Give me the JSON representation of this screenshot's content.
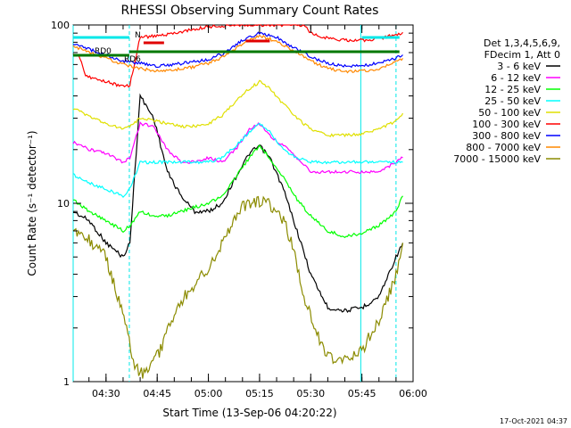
{
  "chart_data": {
    "type": "line",
    "title": "RHESSI Observing Summary Count Rates",
    "xlabel": "Start Time (13-Sep-06 04:20:22)",
    "ylabel": "Count Rate (s⁻¹ detector⁻¹)",
    "y_scale": "log",
    "ylim": [
      1,
      100
    ],
    "xlim": [
      "04:20:22",
      "06:00:00"
    ],
    "x_ticks": [
      "04:30",
      "04:45",
      "05:00",
      "05:15",
      "05:30",
      "05:45",
      "06:00"
    ],
    "y_ticks": [
      {
        "value": 1,
        "label": "1"
      },
      {
        "value": 10,
        "label": "10"
      },
      {
        "value": 100,
        "label": "100"
      }
    ],
    "timestamp": "17-Oct-2021 04:37",
    "legend": {
      "position": "right",
      "header": [
        "Det 1,3,4,5,6,9,",
        "FDecim 1, Att 0"
      ]
    },
    "flags": [
      {
        "label": "RD0",
        "color": "#00a000"
      },
      {
        "label": "RD6",
        "color": "#00a000"
      },
      {
        "label": "N",
        "color": "#00e8e8"
      }
    ],
    "vertical_markers": [
      "04:20:22",
      "04:36:50",
      "05:44:40",
      "05:55:00"
    ],
    "series": [
      {
        "name": "3 - 6 keV",
        "color": "#000000",
        "points": [
          [
            "04:20:22",
            9
          ],
          [
            "04:25",
            8
          ],
          [
            "04:30",
            6
          ],
          [
            "04:35",
            5
          ],
          [
            "04:37",
            6
          ],
          [
            "04:40",
            40
          ],
          [
            "04:44",
            30
          ],
          [
            "04:48",
            15
          ],
          [
            "04:52",
            11
          ],
          [
            "04:56",
            9
          ],
          [
            "05:00",
            9
          ],
          [
            "05:04",
            10
          ],
          [
            "05:08",
            14
          ],
          [
            "05:12",
            19
          ],
          [
            "05:15",
            21
          ],
          [
            "05:18",
            18
          ],
          [
            "05:22",
            12
          ],
          [
            "05:26",
            7
          ],
          [
            "05:30",
            4
          ],
          [
            "05:35",
            2.6
          ],
          [
            "05:40",
            2.5
          ],
          [
            "05:45",
            2.6
          ],
          [
            "05:50",
            3
          ],
          [
            "05:55",
            5
          ],
          [
            "05:57",
            6
          ]
        ]
      },
      {
        "name": "6 - 12 keV",
        "color": "#ff00ff",
        "points": [
          [
            "04:20:22",
            22
          ],
          [
            "04:25",
            20
          ],
          [
            "04:30",
            19
          ],
          [
            "04:35",
            17
          ],
          [
            "04:37",
            18
          ],
          [
            "04:40",
            28
          ],
          [
            "04:44",
            27
          ],
          [
            "04:48",
            20
          ],
          [
            "04:52",
            17
          ],
          [
            "04:56",
            17
          ],
          [
            "05:00",
            18
          ],
          [
            "05:04",
            17
          ],
          [
            "05:08",
            20
          ],
          [
            "05:12",
            26
          ],
          [
            "05:15",
            28
          ],
          [
            "05:18",
            24
          ],
          [
            "05:22",
            21
          ],
          [
            "05:26",
            18
          ],
          [
            "05:30",
            15
          ],
          [
            "05:35",
            15
          ],
          [
            "05:40",
            15
          ],
          [
            "05:45",
            15
          ],
          [
            "05:50",
            15
          ],
          [
            "05:55",
            17
          ],
          [
            "05:57",
            18
          ]
        ]
      },
      {
        "name": "12 - 25 keV",
        "color": "#00ff00",
        "points": [
          [
            "04:20:22",
            10.5
          ],
          [
            "04:25",
            9
          ],
          [
            "04:30",
            8
          ],
          [
            "04:35",
            7
          ],
          [
            "04:37",
            7.5
          ],
          [
            "04:40",
            9
          ],
          [
            "04:44",
            8.5
          ],
          [
            "04:48",
            8.5
          ],
          [
            "04:52",
            9
          ],
          [
            "04:56",
            9.5
          ],
          [
            "05:00",
            10
          ],
          [
            "05:04",
            11
          ],
          [
            "05:08",
            14
          ],
          [
            "05:12",
            18
          ],
          [
            "05:15",
            21
          ],
          [
            "05:18",
            18
          ],
          [
            "05:22",
            14
          ],
          [
            "05:26",
            10.5
          ],
          [
            "05:30",
            8.5
          ],
          [
            "05:35",
            7
          ],
          [
            "05:40",
            6.5
          ],
          [
            "05:45",
            6.8
          ],
          [
            "05:50",
            7.5
          ],
          [
            "05:55",
            9
          ],
          [
            "05:57",
            11
          ]
        ]
      },
      {
        "name": "25 - 50 keV",
        "color": "#00ffff",
        "points": [
          [
            "04:20:22",
            14.5
          ],
          [
            "04:25",
            13
          ],
          [
            "04:30",
            12
          ],
          [
            "04:35",
            11
          ],
          [
            "04:37",
            12
          ],
          [
            "04:40",
            17
          ],
          [
            "04:44",
            17
          ],
          [
            "04:48",
            17
          ],
          [
            "04:52",
            17
          ],
          [
            "04:56",
            17
          ],
          [
            "05:00",
            17
          ],
          [
            "05:04",
            18
          ],
          [
            "05:08",
            21
          ],
          [
            "05:12",
            25
          ],
          [
            "05:15",
            28
          ],
          [
            "05:18",
            25
          ],
          [
            "05:22",
            20
          ],
          [
            "05:26",
            18
          ],
          [
            "05:30",
            17
          ],
          [
            "05:35",
            17
          ],
          [
            "05:40",
            17
          ],
          [
            "05:45",
            17
          ],
          [
            "05:50",
            17
          ],
          [
            "05:55",
            17
          ],
          [
            "05:57",
            17
          ]
        ]
      },
      {
        "name": "50 - 100 keV",
        "color": "#e0e000",
        "points": [
          [
            "04:20:22",
            34
          ],
          [
            "04:25",
            31
          ],
          [
            "04:30",
            28
          ],
          [
            "04:35",
            26
          ],
          [
            "04:37",
            27
          ],
          [
            "04:40",
            30
          ],
          [
            "04:44",
            29
          ],
          [
            "04:48",
            28
          ],
          [
            "04:52",
            27
          ],
          [
            "04:56",
            27
          ],
          [
            "05:00",
            28
          ],
          [
            "05:04",
            31
          ],
          [
            "05:08",
            37
          ],
          [
            "05:12",
            44
          ],
          [
            "05:15",
            48
          ],
          [
            "05:18",
            44
          ],
          [
            "05:22",
            36
          ],
          [
            "05:26",
            30
          ],
          [
            "05:30",
            26
          ],
          [
            "05:35",
            24
          ],
          [
            "05:40",
            24
          ],
          [
            "05:45",
            24.5
          ],
          [
            "05:50",
            26
          ],
          [
            "05:55",
            29
          ],
          [
            "05:57",
            32
          ]
        ]
      },
      {
        "name": "100 - 300 keV",
        "color": "#ff0000",
        "points": [
          [
            "04:20:22",
            68
          ],
          [
            "04:22",
            68
          ],
          [
            "04:24",
            52
          ],
          [
            "04:28",
            49
          ],
          [
            "04:32",
            47
          ],
          [
            "04:35",
            45
          ],
          [
            "04:37",
            46
          ],
          [
            "04:40",
            85
          ],
          [
            "04:45",
            87
          ],
          [
            "04:50",
            90
          ],
          [
            "04:55",
            94
          ],
          [
            "05:00",
            98
          ],
          [
            "05:04",
            98
          ],
          [
            "05:06",
            100
          ],
          [
            "05:10",
            100
          ],
          [
            "05:15",
            100
          ],
          [
            "05:20",
            100
          ],
          [
            "05:25",
            100
          ],
          [
            "05:28",
            100
          ],
          [
            "05:30",
            90
          ],
          [
            "05:35",
            84
          ],
          [
            "05:40",
            82
          ],
          [
            "05:45",
            82
          ],
          [
            "05:50",
            84
          ],
          [
            "05:55",
            88
          ],
          [
            "05:57",
            91
          ]
        ]
      },
      {
        "name": "300 - 800 keV",
        "color": "#0000ff",
        "points": [
          [
            "04:20:22",
            79
          ],
          [
            "04:25",
            73
          ],
          [
            "04:30",
            68
          ],
          [
            "04:35",
            63
          ],
          [
            "04:40",
            61
          ],
          [
            "04:45",
            59
          ],
          [
            "04:50",
            60
          ],
          [
            "04:55",
            62
          ],
          [
            "05:00",
            64
          ],
          [
            "05:05",
            70
          ],
          [
            "05:10",
            82
          ],
          [
            "05:15",
            90
          ],
          [
            "05:20",
            85
          ],
          [
            "05:25",
            75
          ],
          [
            "05:30",
            66
          ],
          [
            "05:35",
            61
          ],
          [
            "05:40",
            59
          ],
          [
            "05:45",
            59
          ],
          [
            "05:50",
            61
          ],
          [
            "05:55",
            65
          ],
          [
            "05:57",
            68
          ]
        ]
      },
      {
        "name": "800 - 7000 keV",
        "color": "#ff8800",
        "points": [
          [
            "04:20:22",
            76
          ],
          [
            "04:25",
            70
          ],
          [
            "04:30",
            65
          ],
          [
            "04:35",
            60
          ],
          [
            "04:40",
            57
          ],
          [
            "04:45",
            55
          ],
          [
            "04:50",
            56
          ],
          [
            "04:55",
            58
          ],
          [
            "05:00",
            61
          ],
          [
            "05:05",
            67
          ],
          [
            "05:10",
            79
          ],
          [
            "05:15",
            87
          ],
          [
            "05:20",
            81
          ],
          [
            "05:25",
            71
          ],
          [
            "05:30",
            63
          ],
          [
            "05:35",
            57
          ],
          [
            "05:40",
            55
          ],
          [
            "05:45",
            55
          ],
          [
            "05:50",
            57
          ],
          [
            "05:55",
            62
          ],
          [
            "05:57",
            65
          ]
        ]
      },
      {
        "name": "7000 - 15000 keV",
        "color": "#8b8b00",
        "points": [
          [
            "04:20:22",
            7
          ],
          [
            "04:25",
            6.2
          ],
          [
            "04:30",
            5
          ],
          [
            "04:33",
            3.2
          ],
          [
            "04:36",
            2.1
          ],
          [
            "04:38",
            1.3
          ],
          [
            "04:40",
            1.1
          ],
          [
            "04:43",
            1.2
          ],
          [
            "04:46",
            1.5
          ],
          [
            "04:50",
            2.4
          ],
          [
            "04:54",
            3.2
          ],
          [
            "05:00",
            4.4
          ],
          [
            "05:05",
            6.5
          ],
          [
            "05:10",
            9.5
          ],
          [
            "05:15",
            10.3
          ],
          [
            "05:18",
            9.8
          ],
          [
            "05:22",
            8
          ],
          [
            "05:25",
            5.5
          ],
          [
            "05:28",
            3
          ],
          [
            "05:31",
            2
          ],
          [
            "05:35",
            1.4
          ],
          [
            "05:40",
            1.3
          ],
          [
            "05:45",
            1.5
          ],
          [
            "05:50",
            2.2
          ],
          [
            "05:55",
            4
          ],
          [
            "05:57",
            6
          ]
        ]
      }
    ]
  }
}
